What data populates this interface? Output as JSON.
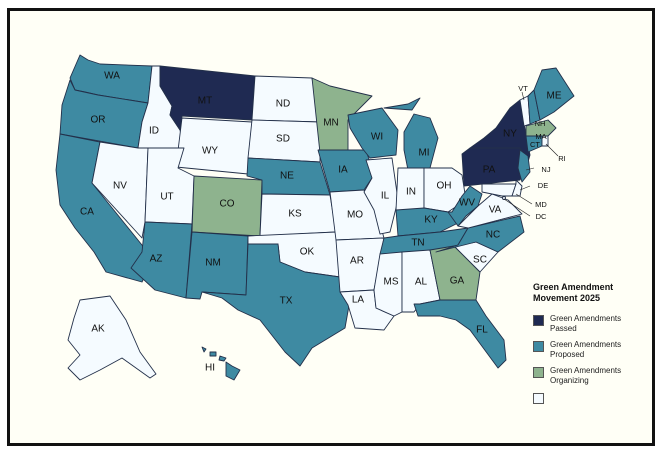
{
  "colors": {
    "passed": "#1f2a52",
    "proposed": "#3e8aa2",
    "organizing": "#8eb38e",
    "none": "#f5fbff",
    "border": "#23304a",
    "frame": "#111111"
  },
  "legend": {
    "title": "Green Amendment Movement 2025",
    "items": [
      {
        "status": "passed",
        "label": "Green Amendments Passed"
      },
      {
        "status": "proposed",
        "label": "Green Amendments Proposed"
      },
      {
        "status": "organizing",
        "label": "Green Amendments Organizing"
      },
      {
        "status": "none",
        "label": ""
      }
    ]
  },
  "states": [
    {
      "abbr": "WA",
      "status": "proposed"
    },
    {
      "abbr": "OR",
      "status": "proposed"
    },
    {
      "abbr": "CA",
      "status": "proposed"
    },
    {
      "abbr": "ID",
      "status": "none"
    },
    {
      "abbr": "NV",
      "status": "none"
    },
    {
      "abbr": "MT",
      "status": "passed"
    },
    {
      "abbr": "WY",
      "status": "none"
    },
    {
      "abbr": "UT",
      "status": "none"
    },
    {
      "abbr": "AZ",
      "status": "proposed"
    },
    {
      "abbr": "CO",
      "status": "organizing"
    },
    {
      "abbr": "NM",
      "status": "proposed"
    },
    {
      "abbr": "ND",
      "status": "none"
    },
    {
      "abbr": "SD",
      "status": "none"
    },
    {
      "abbr": "NE",
      "status": "proposed"
    },
    {
      "abbr": "KS",
      "status": "none"
    },
    {
      "abbr": "OK",
      "status": "none"
    },
    {
      "abbr": "TX",
      "status": "proposed"
    },
    {
      "abbr": "MN",
      "status": "organizing"
    },
    {
      "abbr": "IA",
      "status": "proposed"
    },
    {
      "abbr": "MO",
      "status": "none"
    },
    {
      "abbr": "AR",
      "status": "none"
    },
    {
      "abbr": "LA",
      "status": "none"
    },
    {
      "abbr": "WI",
      "status": "proposed"
    },
    {
      "abbr": "IL",
      "status": "none"
    },
    {
      "abbr": "MI",
      "status": "proposed"
    },
    {
      "abbr": "IN",
      "status": "none"
    },
    {
      "abbr": "OH",
      "status": "none"
    },
    {
      "abbr": "KY",
      "status": "proposed"
    },
    {
      "abbr": "TN",
      "status": "proposed"
    },
    {
      "abbr": "MS",
      "status": "none"
    },
    {
      "abbr": "AL",
      "status": "none"
    },
    {
      "abbr": "GA",
      "status": "organizing"
    },
    {
      "abbr": "FL",
      "status": "proposed"
    },
    {
      "abbr": "SC",
      "status": "none"
    },
    {
      "abbr": "NC",
      "status": "proposed"
    },
    {
      "abbr": "VA",
      "status": "none"
    },
    {
      "abbr": "WV",
      "status": "proposed"
    },
    {
      "abbr": "PA",
      "status": "passed"
    },
    {
      "abbr": "NY",
      "status": "passed"
    },
    {
      "abbr": "VT",
      "status": "none"
    },
    {
      "abbr": "NH",
      "status": "proposed"
    },
    {
      "abbr": "ME",
      "status": "proposed"
    },
    {
      "abbr": "MA",
      "status": "organizing"
    },
    {
      "abbr": "RI",
      "status": "none"
    },
    {
      "abbr": "CT",
      "status": "proposed"
    },
    {
      "abbr": "NJ",
      "status": "proposed"
    },
    {
      "abbr": "DE",
      "status": "none"
    },
    {
      "abbr": "MD",
      "status": "none"
    },
    {
      "abbr": "DC",
      "status": "none"
    },
    {
      "abbr": "AK",
      "status": "none"
    },
    {
      "abbr": "HI",
      "status": "proposed"
    }
  ]
}
